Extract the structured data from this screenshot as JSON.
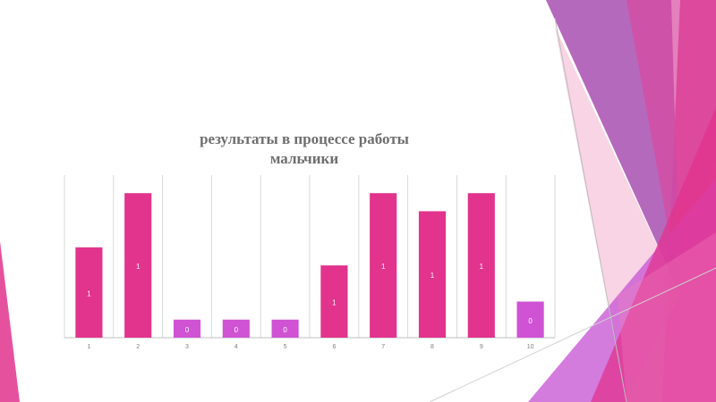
{
  "slide": {
    "accent_colors": [
      "#e2338d",
      "#c95ad6",
      "#a84fb0",
      "#f3b8d4"
    ]
  },
  "chart_data": {
    "type": "bar",
    "title_lines": [
      "результаты в процессе работы",
      "мальчики"
    ],
    "categories": [
      "1",
      "2",
      "3",
      "4",
      "5",
      "6",
      "7",
      "8",
      "9",
      "10"
    ],
    "values": [
      5,
      8,
      1,
      1,
      1,
      4,
      8,
      7,
      8,
      2
    ],
    "data_labels": [
      "1",
      "1",
      "0",
      "0",
      "0",
      "1",
      "1",
      "1",
      "1",
      "0"
    ],
    "bar_colors": [
      "#e2338d",
      "#e2338d",
      "#cf53d3",
      "#cf53d3",
      "#cf53d3",
      "#e2338d",
      "#e2338d",
      "#e2338d",
      "#e2338d",
      "#cf53d3"
    ],
    "xlabel": "",
    "ylabel": "",
    "ylim": [
      0,
      9
    ],
    "grid": "vertical separators",
    "legend": "none"
  }
}
